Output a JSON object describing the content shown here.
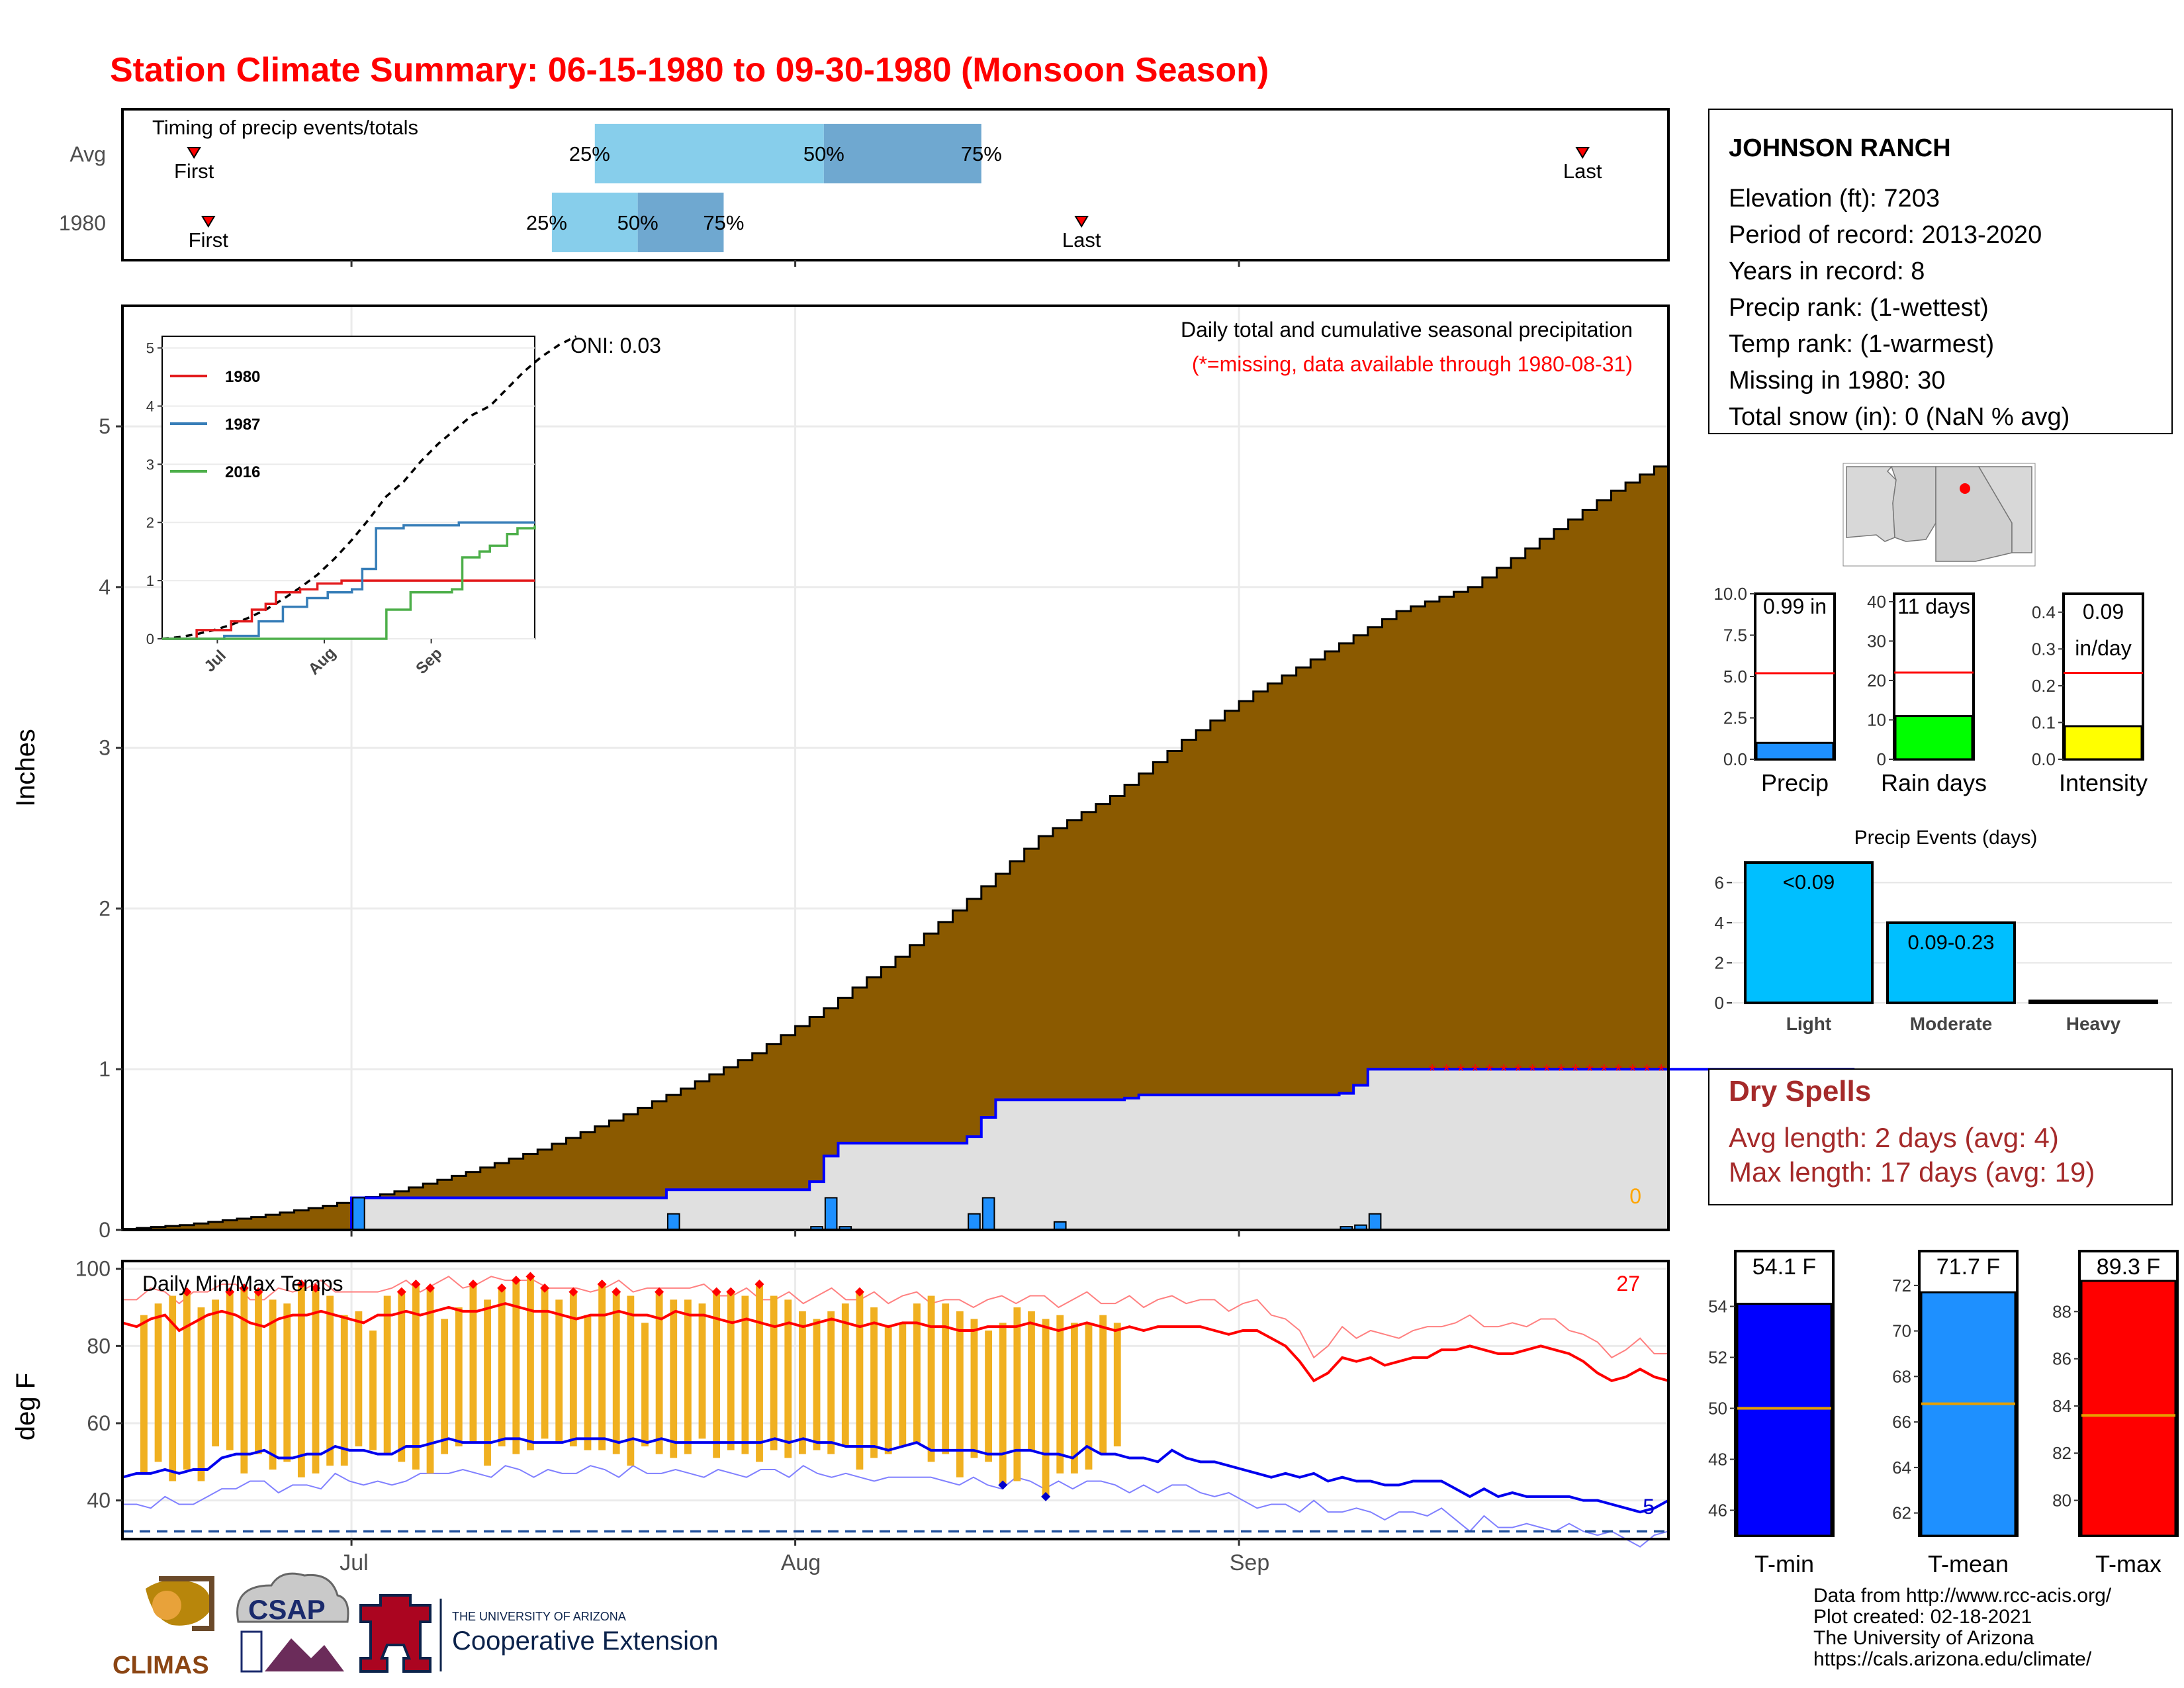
{
  "title": "Station Climate Summary: 06-15-1980 to 09-30-1980 (Monsoon Season)",
  "colors": {
    "title_red": "#ff0000",
    "brown": "#8B5A00",
    "light_blue": "#87CEEB",
    "mid_blue": "#6FA8D0",
    "gold": "#F0B020",
    "dark_red": "#A52A2A"
  },
  "months": [
    "Jul",
    "Aug",
    "Sep"
  ],
  "timing": {
    "title": "Timing of precip events/totals",
    "rows": [
      {
        "label": "Avg",
        "first_label": "First",
        "last_label": "Last",
        "first": "1980-06-20",
        "last": "1980-09-25",
        "p25_label": "25%",
        "p50_label": "50%",
        "p75_label": "75%",
        "p25": "1980-07-18",
        "p50": "1980-08-03",
        "p75": "1980-08-14"
      },
      {
        "label": "1980",
        "first_label": "First",
        "last_label": "Last",
        "first": "1980-06-21",
        "last": "1980-08-21",
        "p25_label": "25%",
        "p50_label": "50%",
        "p75_label": "75%",
        "p25": "1980-07-15",
        "p50": "1980-07-21",
        "p75": "1980-07-27"
      }
    ]
  },
  "precip_panel": {
    "ylabel": "Inches",
    "oni": "ONI: 0.03",
    "caption": "Daily total and cumulative seasonal precipitation",
    "missing_note": "(*=missing, data available through 1980-08-31)",
    "corner_count": "0",
    "yticks": [
      "0",
      "1",
      "2",
      "3",
      "4",
      "5"
    ]
  },
  "inset": {
    "yticks": [
      "0",
      "1",
      "2",
      "3",
      "4",
      "5"
    ],
    "xticks": [
      "Jul",
      "Aug",
      "Sep"
    ],
    "legend": [
      {
        "name": "1980",
        "color": "#e31a1c"
      },
      {
        "name": "1987",
        "color": "#377eb8"
      },
      {
        "name": "2016",
        "color": "#4daf4a"
      }
    ]
  },
  "temp_panel": {
    "ylabel": "deg F",
    "title": "Daily Min/Max Temps",
    "count_hot": "27",
    "count_cold": "5",
    "yticks": [
      "40",
      "60",
      "80",
      "100"
    ]
  },
  "info": {
    "station": "JOHNSON RANCH",
    "lines": [
      "Elevation (ft): 7203",
      "Period of record: 2013-2020",
      "Years in record: 8",
      "Precip rank:  (1-wettest)",
      "Temp rank:  (1-warmest)",
      "Missing in 1980: 30",
      "Total snow (in): 0 (NaN % avg)"
    ]
  },
  "mini_bars": [
    {
      "label": "Precip",
      "value": 0.99,
      "avg": 5.2,
      "ymax": 10,
      "ticks": [
        "0.0",
        "2.5",
        "5.0",
        "7.5",
        "10.0"
      ],
      "tickvals": [
        0,
        2.5,
        5,
        7.5,
        10
      ],
      "box": "0.99 in",
      "box2": "",
      "color": "#1E90FF"
    },
    {
      "label": "Rain days",
      "value": 11,
      "avg": 22,
      "ymax": 42,
      "ticks": [
        "0",
        "10",
        "20",
        "30",
        "40"
      ],
      "tickvals": [
        0,
        10,
        20,
        30,
        40
      ],
      "box": "11 days",
      "box2": "",
      "color": "#00FF00"
    },
    {
      "label": "Intensity",
      "value": 0.09,
      "avg": 0.235,
      "ymax": 0.45,
      "ticks": [
        "0.0",
        "0.1",
        "0.2",
        "0.3",
        "0.4"
      ],
      "tickvals": [
        0,
        0.1,
        0.2,
        0.3,
        0.4
      ],
      "box": "0.09",
      "box2": "in/day",
      "color": "#FFFF00"
    }
  ],
  "events": {
    "title": "Precip Events (days)",
    "ticks": [
      "0",
      "2",
      "4",
      "6"
    ],
    "bars": [
      {
        "cat": "Light",
        "label": "<0.09",
        "value": 7
      },
      {
        "cat": "Moderate",
        "label": "0.09-0.23",
        "value": 4
      },
      {
        "cat": "Heavy",
        "label": "",
        "value": 0
      }
    ]
  },
  "dry_spells": {
    "title": "Dry Spells",
    "lines": [
      "Avg length: 2 days (avg: 4)",
      "Max length: 17 days (avg: 19)"
    ]
  },
  "temp_bars": [
    {
      "label": "T-min",
      "value": 54.1,
      "avg": 50.0,
      "min": 45,
      "max": 55,
      "ticks": [
        "46",
        "48",
        "50",
        "52",
        "54"
      ],
      "tickvals": [
        46,
        48,
        50,
        52,
        54
      ],
      "box": "54.1 F",
      "color": "#0000FF"
    },
    {
      "label": "T-mean",
      "value": 71.7,
      "avg": 66.8,
      "min": 61,
      "max": 72.2,
      "ticks": [
        "62",
        "64",
        "66",
        "68",
        "70",
        "72"
      ],
      "tickvals": [
        62,
        64,
        66,
        68,
        70,
        72
      ],
      "box": "71.7 F",
      "color": "#1E90FF"
    },
    {
      "label": "T-max",
      "value": 89.3,
      "avg": 83.6,
      "min": 78.5,
      "max": 89.3,
      "ticks": [
        "80",
        "82",
        "84",
        "86",
        "88"
      ],
      "tickvals": [
        80,
        82,
        84,
        86,
        88
      ],
      "box": "89.3 F",
      "color": "#FF0000"
    }
  ],
  "footer": {
    "credits": [
      "Data from http://www.rcc-acis.org/",
      "Plot created: 02-18-2021",
      "The University of Arizona",
      "https://cals.arizona.edu/climate/"
    ],
    "logo_climas": "CLIMAS",
    "logo_csap": "CSAP",
    "ua_small": "THE UNIVERSITY OF ARIZONA",
    "ua_big": "Cooperative Extension"
  },
  "chart_data": {
    "type": "area",
    "x_start": "1980-06-15",
    "x_end": "1980-09-30",
    "avg_cumulative": [
      [
        0,
        0
      ],
      [
        5,
        0.03
      ],
      [
        10,
        0.08
      ],
      [
        15,
        0.15
      ],
      [
        20,
        0.24
      ],
      [
        25,
        0.36
      ],
      [
        30,
        0.5
      ],
      [
        35,
        0.68
      ],
      [
        40,
        0.88
      ],
      [
        45,
        1.1
      ],
      [
        50,
        1.38
      ],
      [
        55,
        1.7
      ],
      [
        60,
        2.06
      ],
      [
        65,
        2.45
      ],
      [
        70,
        2.7
      ],
      [
        75,
        3.05
      ],
      [
        80,
        3.35
      ],
      [
        85,
        3.6
      ],
      [
        90,
        3.85
      ],
      [
        95,
        4.0
      ],
      [
        100,
        4.3
      ],
      [
        105,
        4.6
      ],
      [
        110,
        4.85
      ],
      [
        115,
        5.05
      ],
      [
        120,
        5.2
      ]
    ],
    "cum_1980": [
      [
        0,
        0
      ],
      [
        15,
        0
      ],
      [
        16,
        0.2
      ],
      [
        37,
        0.2
      ],
      [
        38,
        0.25
      ],
      [
        48,
        0.3
      ],
      [
        49,
        0.46
      ],
      [
        50,
        0.54
      ],
      [
        59,
        0.58
      ],
      [
        60,
        0.7
      ],
      [
        61,
        0.81
      ],
      [
        70,
        0.82
      ],
      [
        71,
        0.84
      ],
      [
        85,
        0.85
      ],
      [
        86,
        0.9
      ],
      [
        87,
        1.0
      ],
      [
        90,
        1.0
      ],
      [
        121,
        1.0
      ]
    ],
    "daily_1980": [
      [
        16,
        0.2
      ],
      [
        38,
        0.1
      ],
      [
        48,
        0.02
      ],
      [
        49,
        0.2
      ],
      [
        50,
        0.02
      ],
      [
        59,
        0.1
      ],
      [
        60,
        0.2
      ],
      [
        65,
        0.05
      ],
      [
        85,
        0.02
      ],
      [
        86,
        0.03
      ],
      [
        87,
        0.1
      ]
    ],
    "missing_days_from": 91,
    "temps_1980": {
      "tmax": [
        88,
        91,
        93,
        94,
        90,
        92,
        94,
        95,
        94,
        92,
        91,
        96,
        95,
        93,
        88,
        89,
        84,
        93,
        94,
        96,
        95,
        87,
        90,
        96,
        92,
        95,
        97,
        98,
        95,
        92,
        94,
        88,
        96,
        94,
        93,
        86,
        94,
        92,
        92,
        91,
        94,
        94,
        93,
        96,
        93,
        92,
        89,
        87,
        89,
        91,
        94,
        90,
        85,
        86,
        91,
        93,
        91,
        89,
        87,
        84,
        86,
        90,
        89,
        87,
        88,
        86,
        86,
        88,
        86
      ],
      "tmin": [
        47,
        50,
        45,
        48,
        45,
        54,
        53,
        47,
        52,
        48,
        50,
        46,
        47,
        49,
        49,
        54,
        53,
        52,
        50,
        48,
        47,
        52,
        54,
        55,
        49,
        54,
        52,
        53,
        56,
        55,
        54,
        53,
        53,
        52,
        49,
        54,
        52,
        51,
        52,
        56,
        51,
        53,
        52,
        50,
        53,
        51,
        52,
        53,
        52,
        54,
        48,
        51,
        52,
        54,
        55,
        50,
        52,
        46,
        51,
        50,
        44,
        45,
        53,
        41,
        47,
        47,
        48,
        52,
        54,
        45,
        47,
        44,
        45
      ]
    },
    "avg_tmax": [
      86,
      85,
      87,
      88,
      84,
      86,
      88,
      89,
      88,
      86,
      85,
      87,
      88,
      88,
      89,
      88,
      87,
      86,
      88,
      88,
      89,
      88,
      89,
      90,
      89,
      89,
      90,
      91,
      90,
      89,
      89,
      88,
      87,
      88,
      88,
      89,
      88,
      88,
      87,
      89,
      88,
      88,
      87,
      86,
      87,
      86,
      85,
      86,
      85,
      86,
      87,
      86,
      85,
      86,
      85,
      86,
      86,
      85,
      85,
      84,
      84,
      85,
      85,
      85,
      86,
      85,
      84,
      85,
      86,
      85,
      84,
      85,
      84,
      85,
      85,
      85,
      85,
      84,
      83,
      84,
      84,
      82,
      80,
      76,
      71,
      73,
      77,
      76,
      77,
      75,
      76,
      77,
      77,
      79,
      79,
      80,
      79,
      78,
      78,
      79,
      80,
      79,
      78,
      76,
      73,
      71,
      72,
      74,
      72,
      71
    ],
    "avg_tmin": [
      46,
      47,
      47,
      48,
      47,
      48,
      48,
      51,
      52,
      52,
      53,
      51,
      51,
      52,
      52,
      54,
      53,
      53,
      52,
      52,
      54,
      54,
      55,
      56,
      55,
      55,
      55,
      56,
      56,
      55,
      55,
      55,
      56,
      56,
      56,
      55,
      56,
      55,
      56,
      55,
      55,
      55,
      55,
      55,
      55,
      55,
      56,
      55,
      56,
      55,
      55,
      54,
      54,
      54,
      53,
      54,
      55,
      53,
      53,
      53,
      53,
      52,
      52,
      53,
      53,
      52,
      52,
      51,
      54,
      52,
      52,
      51,
      51,
      50,
      53,
      51,
      50,
      50,
      49,
      48,
      47,
      46,
      47,
      46,
      47,
      45,
      46,
      45,
      45,
      44,
      44,
      45,
      45,
      45,
      43,
      41,
      43,
      41,
      42,
      41,
      41,
      41,
      41,
      40,
      40,
      39,
      38,
      37,
      38,
      40
    ]
  }
}
